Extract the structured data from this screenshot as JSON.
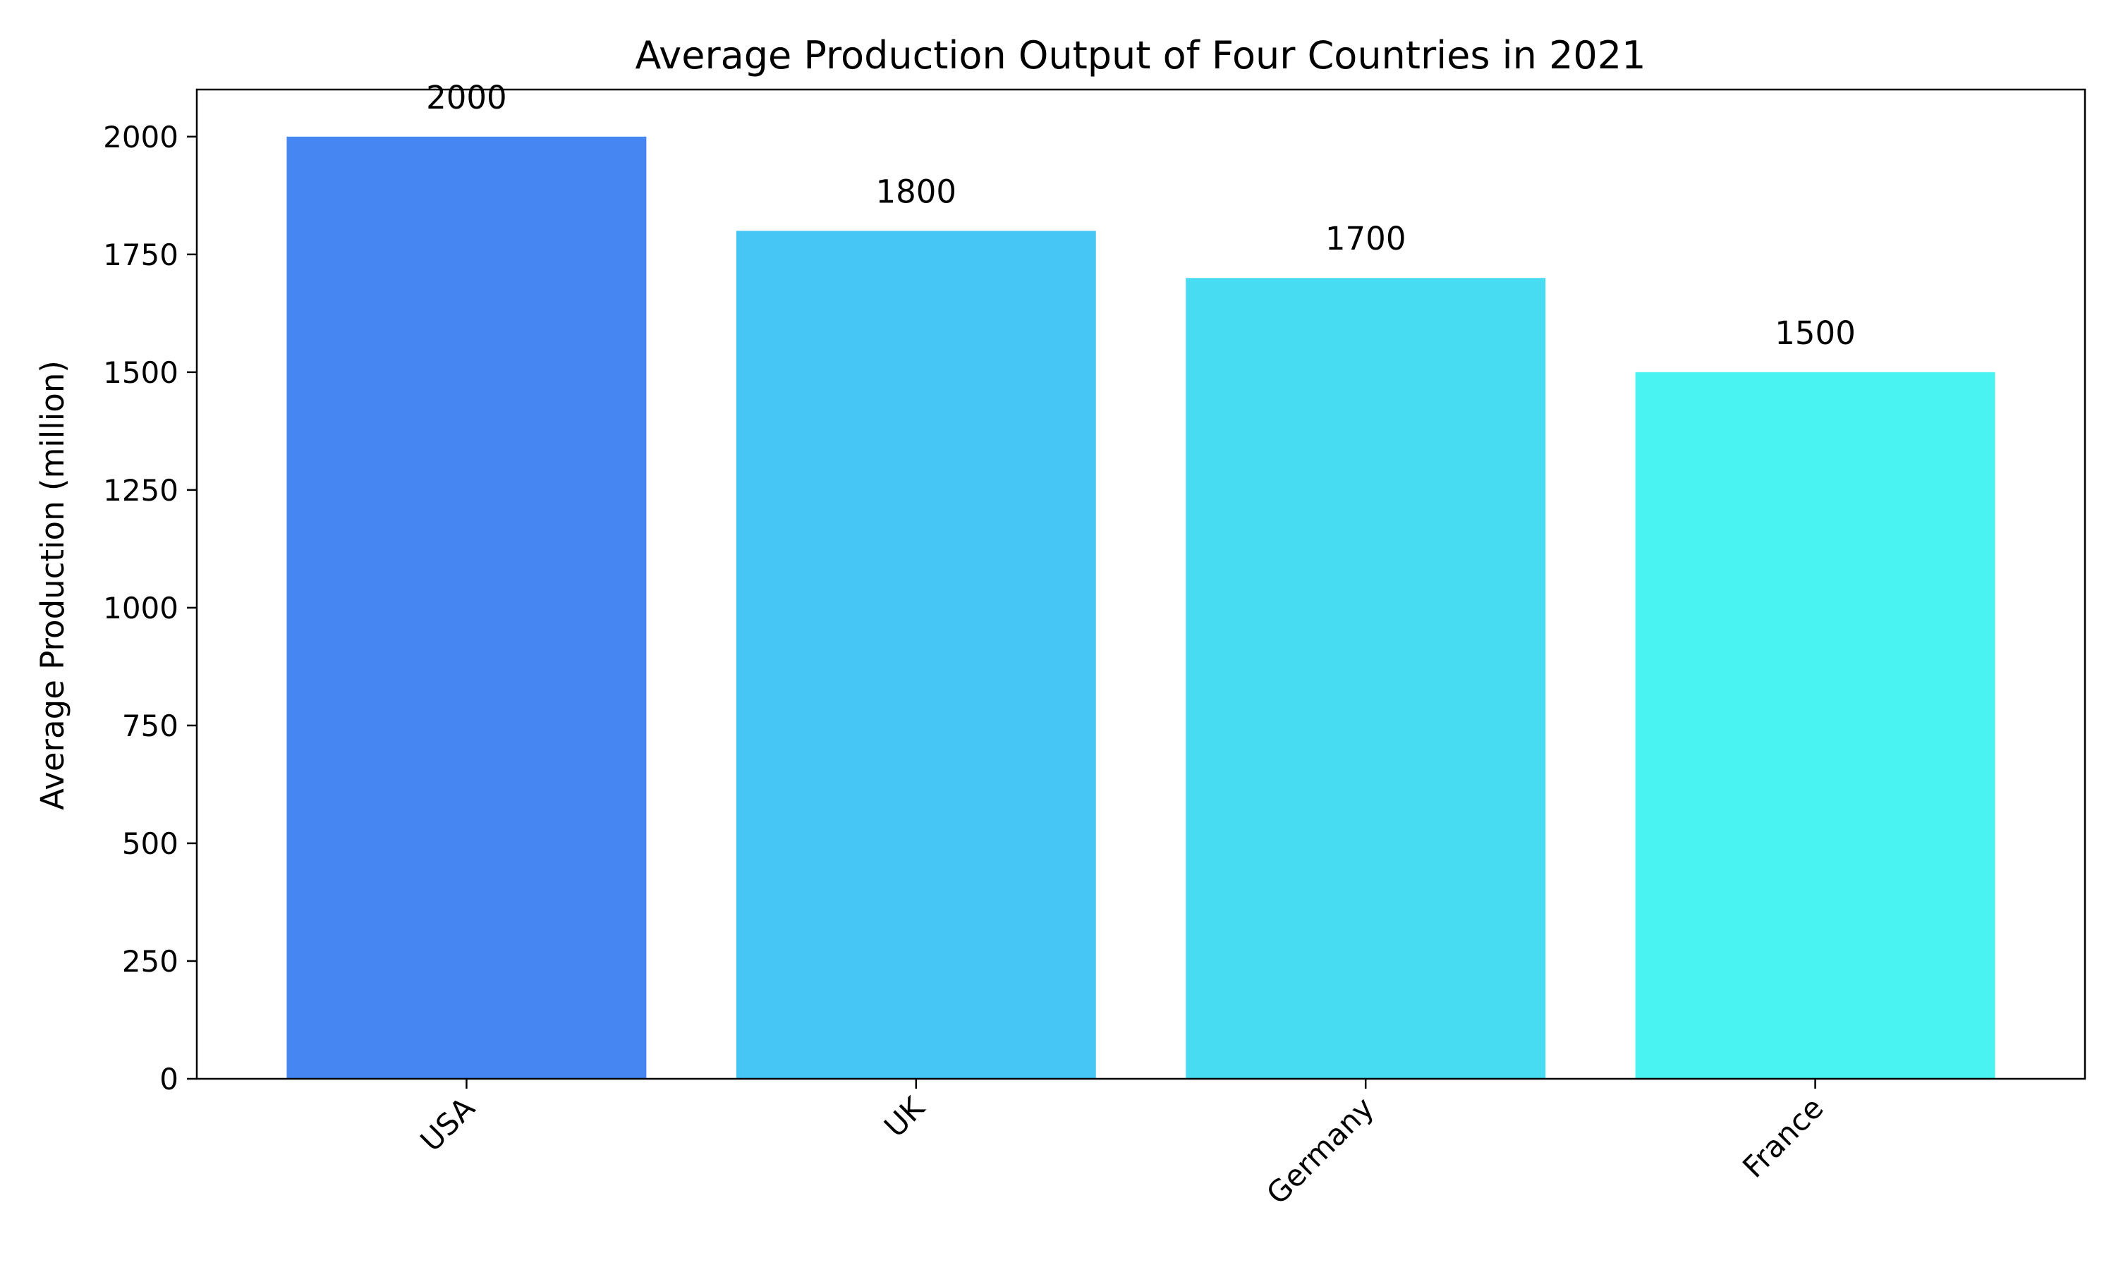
{
  "chart_data": {
    "type": "bar",
    "title": "Average Production Output of Four Countries in 2021",
    "xlabel": "",
    "ylabel": "Average Production (million)",
    "categories": [
      "USA",
      "UK",
      "Germany",
      "France"
    ],
    "values": [
      2000,
      1800,
      1700,
      1500
    ],
    "value_labels": [
      "2000",
      "1800",
      "1700",
      "1500"
    ],
    "bar_colors": [
      "#4586f3",
      "#45c6f4",
      "#47dcf2",
      "#48f3f1"
    ],
    "ylim": [
      0,
      2100
    ],
    "yticks": [
      0,
      250,
      500,
      750,
      1000,
      1250,
      1500,
      1750,
      2000
    ],
    "ytick_labels": [
      "0",
      "250",
      "500",
      "750",
      "1000",
      "1250",
      "1500",
      "1750",
      "2000"
    ],
    "grid": false,
    "legend": "none",
    "xtick_rotation_deg": 45
  }
}
